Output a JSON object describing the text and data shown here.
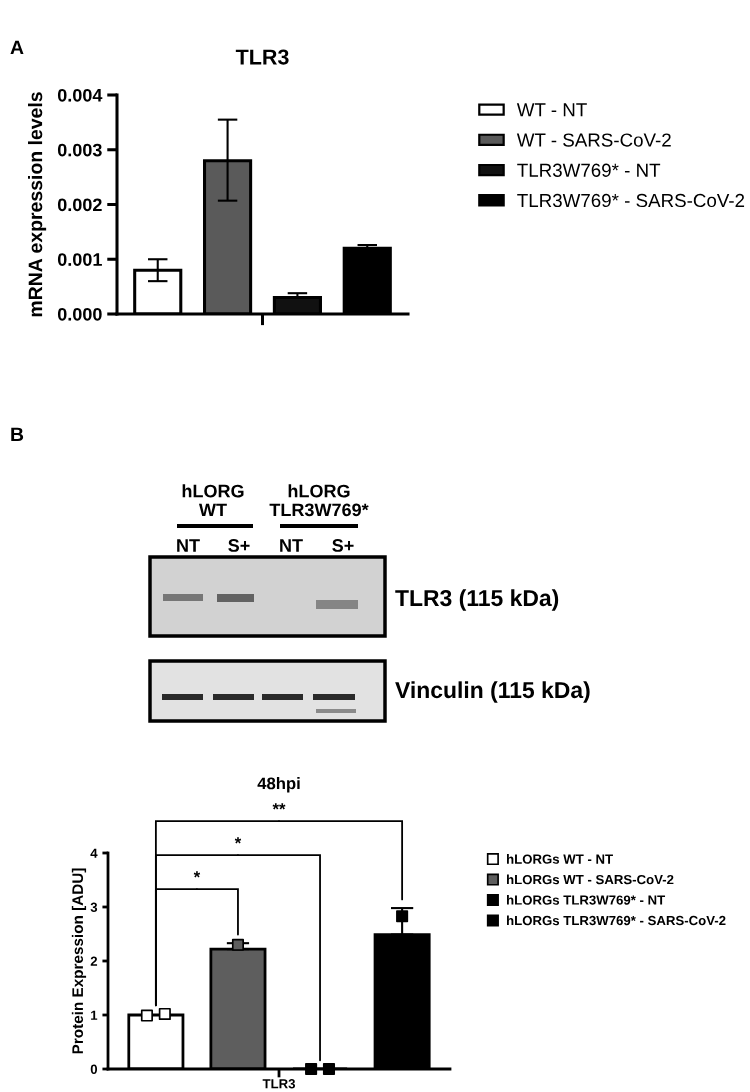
{
  "chart_data": [
    {
      "type": "bar",
      "title": "TLR3",
      "ylabel": "mRNA expression levels",
      "categories": [
        null
      ],
      "series": [
        {
          "name": "WT - NT",
          "color": "#ffffff",
          "values": [
            0.0008
          ],
          "errors": [
            [
              0.0006,
              0.001
            ]
          ]
        },
        {
          "name": "WT - SARS-CoV-2",
          "color": "#5a5a5a",
          "values": [
            0.0028
          ],
          "errors": [
            [
              0.00207,
              0.00355
            ]
          ]
        },
        {
          "name": "TLR3W769* - NT",
          "color": "#111111",
          "values": [
            0.0003
          ],
          "errors": [
            [
              0.0003,
              0.00038
            ]
          ]
        },
        {
          "name": "TLR3W769* - SARS-CoV-2",
          "color": "#000000",
          "values": [
            0.0012
          ],
          "errors": [
            [
              0.0012,
              0.00126
            ]
          ]
        }
      ],
      "ylim": [
        0,
        0.004
      ],
      "yticks": [
        {
          "value": 0,
          "label": "0.000"
        },
        {
          "value": 0.001,
          "label": "0.001"
        },
        {
          "value": 0.002,
          "label": "0.002"
        },
        {
          "value": 0.003,
          "label": "0.003"
        },
        {
          "value": 0.004,
          "label": "0.004"
        }
      ],
      "legend": "right",
      "tick_labels": "y",
      "annotations": [
        "A"
      ]
    },
    {
      "type": "other",
      "annotations": [
        "B",
        "hLORG\nWT",
        "hLORG\nTLR3W769*",
        "NT",
        "S+",
        "NT",
        "S+",
        "TLR3 (115 kDa)",
        "Vinculin (115 kDa)"
      ]
    },
    {
      "type": "bar",
      "title": "48hpi",
      "ylabel": "Protein Expression [ADU]",
      "categories": [
        "TLR3"
      ],
      "series": [
        {
          "name": "hLORGs WT - NT",
          "color": "#ffffff",
          "values": [
            1.0
          ]
        },
        {
          "name": "hLORGs WT - SARS-CoV-2",
          "color": "#5e5e5e",
          "values": [
            2.22
          ],
          "errors": [
            [
              2.22,
              2.33
            ]
          ]
        },
        {
          "name": "hLORGs TLR3W769* - NT",
          "color": "#000000",
          "values": [
            0
          ]
        },
        {
          "name": "hLORGs TLR3W769* - SARS-CoV-2",
          "color": "#000000",
          "values": [
            2.49
          ],
          "errors": [
            [
              2.49,
              2.98
            ]
          ]
        },
        {
          "type": "scatter",
          "color": "#ffffff",
          "x": [
            "TLR3",
            "TLR3"
          ],
          "values": [
            0.99,
            1.02
          ]
        },
        {
          "type": "scatter",
          "color": "#5e5e5e",
          "x": [
            "TLR3"
          ],
          "values": [
            2.3
          ]
        },
        {
          "type": "scatter",
          "color": "#000000",
          "x": [
            "TLR3",
            "TLR3"
          ],
          "values": [
            0,
            0
          ]
        },
        {
          "type": "scatter",
          "color": "#000000",
          "x": [
            "TLR3"
          ],
          "values": [
            2.83
          ]
        }
      ],
      "ylim": [
        0,
        4
      ],
      "yticks": [
        0,
        1,
        2,
        3,
        4
      ],
      "marker": "square",
      "legend": "right",
      "annotations": [
        "*",
        "*",
        "**"
      ]
    }
  ]
}
